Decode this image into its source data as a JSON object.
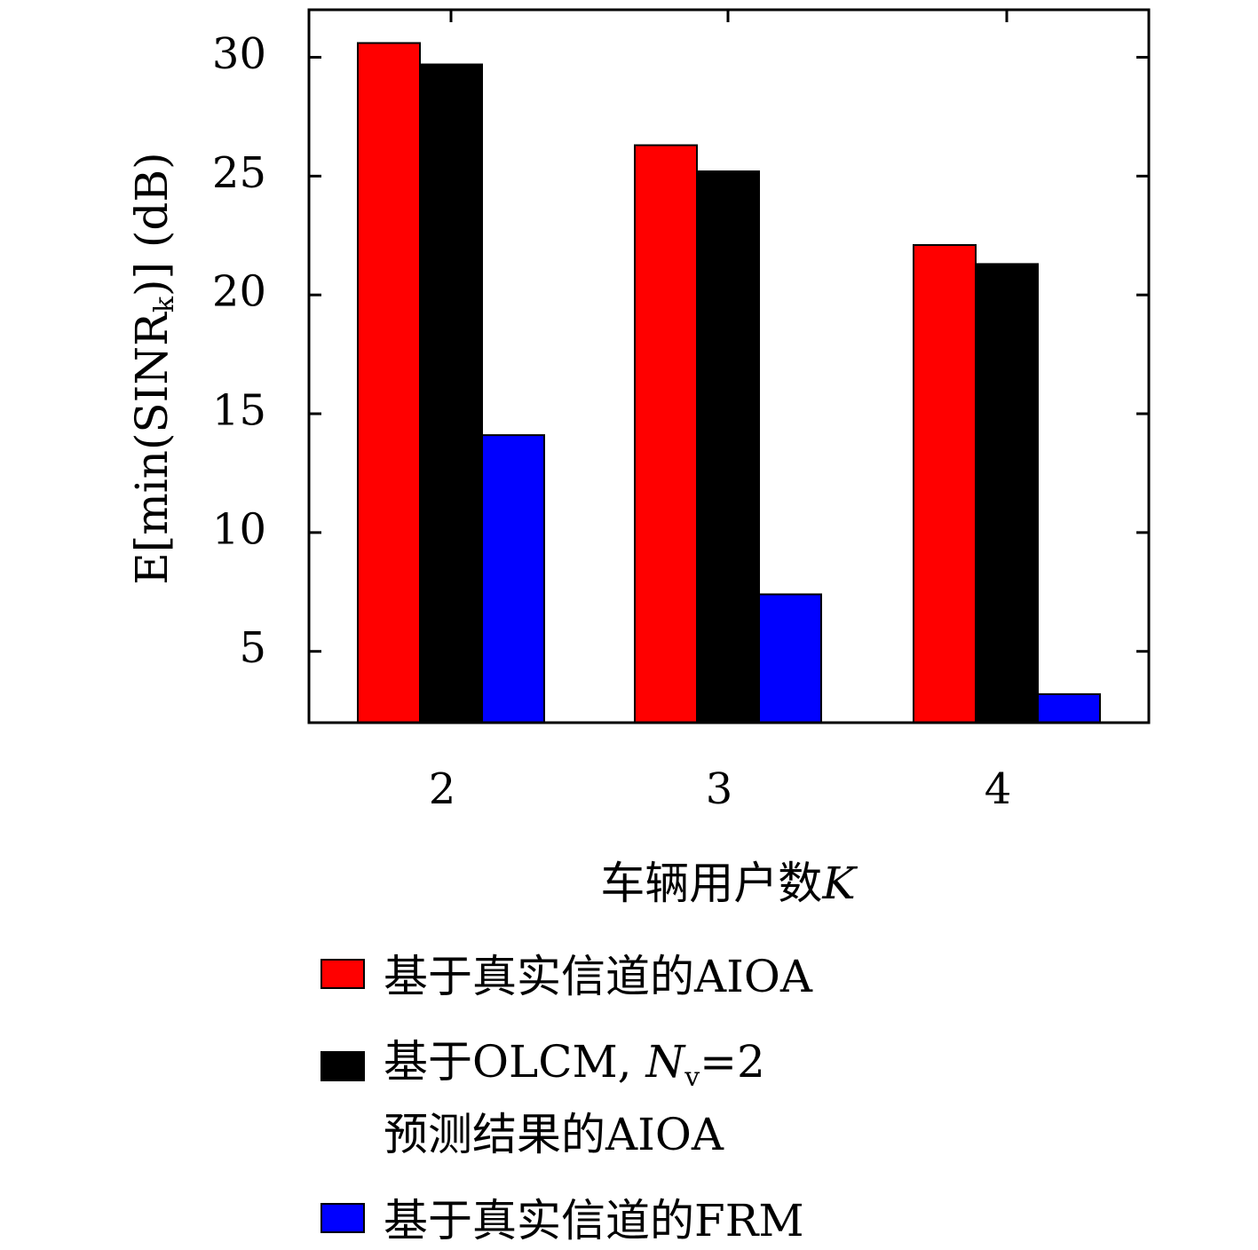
{
  "chart_data": {
    "type": "bar",
    "categories": [
      "2",
      "3",
      "4"
    ],
    "xlabel": "车辆用户数K",
    "ylabel": "E[min(SINRk)] (dB)",
    "ylim": [
      2,
      32
    ],
    "yticks": [
      5,
      10,
      15,
      20,
      25,
      30
    ],
    "grid": false,
    "legend_position": "bottom",
    "series": [
      {
        "name": "基于真实信道的AIOA",
        "color": "#ff0000",
        "values": [
          30.6,
          26.3,
          22.1
        ]
      },
      {
        "name": "基于OLCM, Nv=2 预测结果的AIOA",
        "color": "#000000",
        "values": [
          29.7,
          25.2,
          21.3
        ]
      },
      {
        "name": "基于真实信道的FRM",
        "color": "#0000ff",
        "values": [
          14.1,
          7.4,
          3.2
        ]
      }
    ]
  },
  "labels": {
    "ylabel_main": "E[min(SINR",
    "ylabel_sub": "k",
    "ylabel_tail": ")] (dB)",
    "xlabel_main": "车辆用户数",
    "xlabel_var": "K",
    "legend1": "基于真实信道的AIOA",
    "legend2_main": "基于OLCM, ",
    "legend2_var": "N",
    "legend2_sub": "v",
    "legend2_tail": "=2",
    "legend2_line2": "预测结果的AIOA",
    "legend3": "基于真实信道的FRM"
  }
}
